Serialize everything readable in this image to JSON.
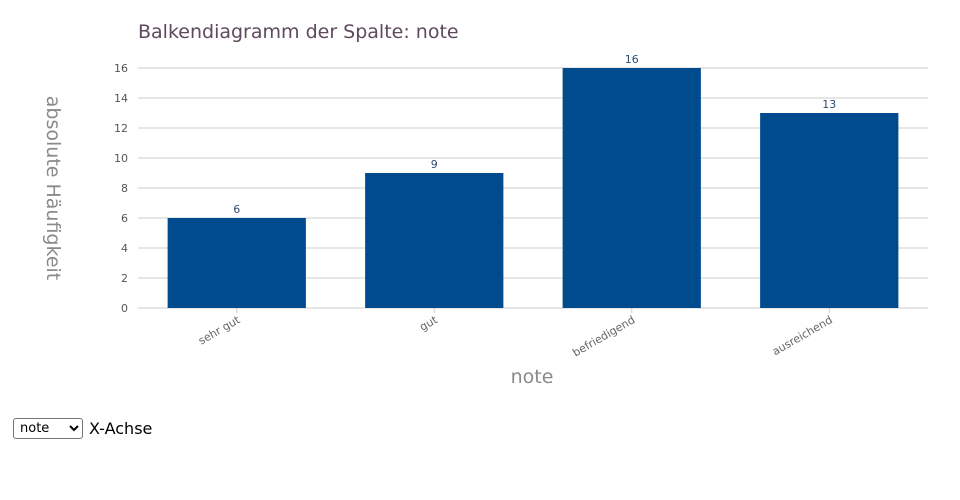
{
  "chart_data": {
    "type": "bar",
    "title": "Balkendiagramm der Spalte: note",
    "xlabel": "note",
    "ylabel": "absolute Häufigkeit",
    "categories": [
      "sehr gut",
      "gut",
      "befriedigend",
      "ausreichend"
    ],
    "values": [
      6,
      9,
      16,
      13
    ],
    "ylim": [
      0,
      16
    ],
    "yticks": [
      0,
      2,
      4,
      6,
      8,
      10,
      12,
      14,
      16
    ],
    "grid": true,
    "bar_color": "#004b8d"
  },
  "controls": {
    "select_value": "note",
    "select_options": [
      "note"
    ],
    "select_label": "X-Achse"
  }
}
